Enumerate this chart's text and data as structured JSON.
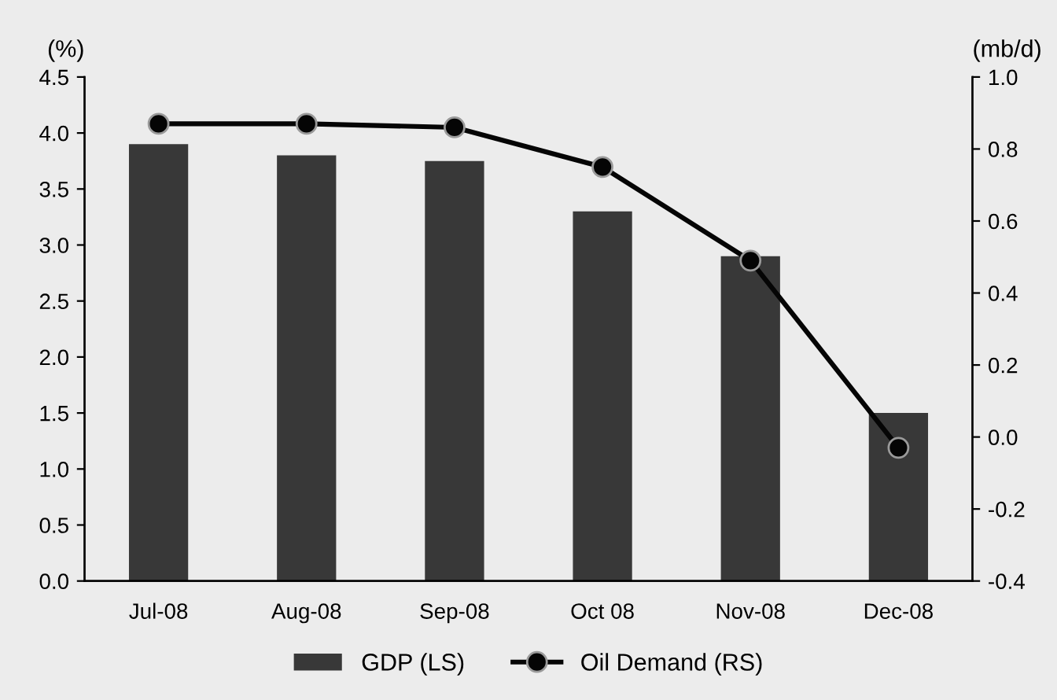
{
  "chart_data": {
    "type": "bar",
    "categories": [
      "Jul-08",
      "Aug-08",
      "Sep-08",
      "Oct 08",
      "Nov-08",
      "Dec-08"
    ],
    "ylabel": "(%)",
    "y2label": "(mb/d)",
    "series": [
      {
        "name": "GDP (LS)",
        "color": "#383838",
        "values": [
          3.9,
          3.8,
          3.75,
          3.3,
          2.9,
          1.5
        ]
      },
      {
        "name": "Oil Demand (RS)",
        "type": "line",
        "axis": "y2",
        "color": "#050505",
        "marker": "circle",
        "values": [
          0.87,
          0.87,
          0.86,
          0.75,
          0.49,
          -0.03
        ]
      }
    ],
    "ylim": [
      0,
      4.5
    ],
    "yticks": [
      {
        "value": 0,
        "label": "0.0"
      },
      0.5,
      {
        "value": 1,
        "label": "1.0"
      },
      1.5,
      {
        "value": 2,
        "label": "2.0"
      },
      2.5,
      {
        "value": 3,
        "label": "3.0"
      },
      3.5,
      {
        "value": 4,
        "label": "4.0"
      },
      4.5
    ],
    "y2lim": [
      -0.4,
      1.0
    ],
    "y2ticks": [
      -0.4,
      -0.2,
      {
        "value": 0,
        "label": "0.0"
      },
      0.2,
      0.4,
      0.6,
      0.8,
      {
        "value": 1,
        "label": "1.0"
      }
    ],
    "legend": "bottom",
    "grid": false
  }
}
